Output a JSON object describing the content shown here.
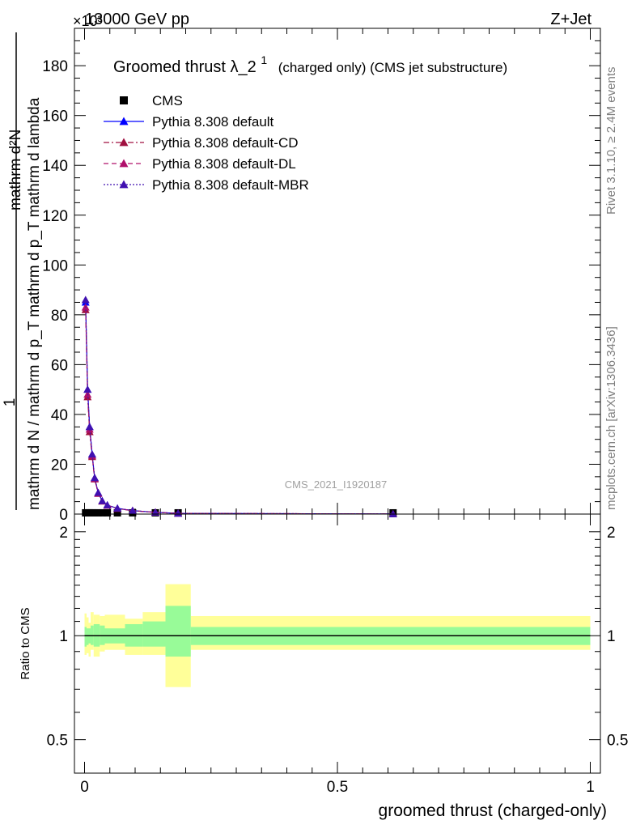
{
  "header": {
    "left": "13000 GeV pp",
    "right": "Z+Jet",
    "exponent": "×10³"
  },
  "side_labels": {
    "rivet": "Rivet 3.1.10, ≥ 2.4M events",
    "mcplots": "mcplots.cern.ch [arXiv:1306.3436]"
  },
  "watermark": "CMS_2021_I1920187",
  "chart_data": [
    {
      "type": "line",
      "title": "Groomed thrust λ_2¹",
      "title_parts": {
        "main": "Groomed thrust",
        "lambda": "λ_2",
        "sup": "1",
        "suffix": "(charged only) (CMS jet substructure)"
      },
      "ylabel": "1 / mathrm d N / mathrm d p_T mathrm d p_T mathrm d lambda / mathrm d²N",
      "ylabel_parts": {
        "numerator": "mathrm d²N",
        "denominator": "mathrm d N / mathrm d p_T mathrm d p_T mathrm d lambda",
        "one": "1"
      },
      "xlim": [
        -0.02,
        1.02
      ],
      "ylim": [
        0,
        195
      ],
      "y_multiplier": 1000,
      "y_ticks": [
        0,
        20,
        40,
        60,
        80,
        100,
        120,
        140,
        160,
        180
      ],
      "x_ticks": [
        0,
        0.5,
        1
      ],
      "legend_position": "top-left",
      "series": [
        {
          "name": "CMS",
          "color": "#000000",
          "marker": "square",
          "line": "none",
          "x": [
            0.002,
            0.006,
            0.01,
            0.015,
            0.02,
            0.027,
            0.035,
            0.045,
            0.065,
            0.095,
            0.14,
            0.185,
            0.61
          ],
          "values": [
            0.5,
            0.5,
            0.5,
            0.5,
            0.5,
            0.5,
            0.5,
            0.5,
            0.5,
            0.5,
            0.5,
            0.5,
            0.5
          ]
        },
        {
          "name": "Pythia 8.308 default",
          "color": "#0000ff",
          "marker": "triangle",
          "line": "solid",
          "x": [
            0.002,
            0.006,
            0.01,
            0.015,
            0.02,
            0.027,
            0.035,
            0.045,
            0.065,
            0.095,
            0.14,
            0.185,
            0.61
          ],
          "values": [
            85,
            50,
            35,
            24,
            14.5,
            8.5,
            5.3,
            3.6,
            2.3,
            1.4,
            0.7,
            0.3,
            0.02
          ]
        },
        {
          "name": "Pythia 8.308 default-CD",
          "color": "#a01040",
          "marker": "triangle",
          "line": "dashdot",
          "x": [
            0.002,
            0.006,
            0.01,
            0.015,
            0.02,
            0.027,
            0.035,
            0.045,
            0.065,
            0.095,
            0.14,
            0.185,
            0.61
          ],
          "values": [
            82,
            47,
            33,
            23,
            14,
            8.2,
            5.1,
            3.5,
            2.2,
            1.35,
            0.68,
            0.3,
            0.02
          ]
        },
        {
          "name": "Pythia 8.308 default-DL",
          "color": "#b0106a",
          "marker": "triangle",
          "line": "dashed",
          "x": [
            0.002,
            0.006,
            0.01,
            0.015,
            0.02,
            0.027,
            0.035,
            0.045,
            0.065,
            0.095,
            0.14,
            0.185,
            0.61
          ],
          "values": [
            83,
            48,
            34,
            23.5,
            14.2,
            8.3,
            5.2,
            3.5,
            2.25,
            1.38,
            0.69,
            0.3,
            0.02
          ]
        },
        {
          "name": "Pythia 8.308 default-MBR",
          "color": "#4010b0",
          "marker": "triangle",
          "line": "dotted",
          "x": [
            0.002,
            0.006,
            0.01,
            0.015,
            0.02,
            0.027,
            0.035,
            0.045,
            0.065,
            0.095,
            0.14,
            0.185,
            0.61
          ],
          "values": [
            86,
            50,
            35,
            24,
            14.6,
            8.6,
            5.3,
            3.6,
            2.3,
            1.4,
            0.7,
            0.3,
            0.02
          ]
        }
      ]
    },
    {
      "type": "area",
      "ylabel": "Ratio to CMS",
      "xlabel": "groomed thrust (charged-only)",
      "xlim": [
        -0.02,
        1.02
      ],
      "ylim": [
        0.4,
        2.25
      ],
      "y_scale": "log",
      "y_ticks": [
        0.5,
        1,
        2
      ],
      "x_ticks": [
        0,
        0.5,
        1
      ],
      "x_tick_labels": [
        "0",
        "0.5",
        "1"
      ],
      "bands": {
        "bin_edges": [
          0,
          0.004,
          0.008,
          0.012,
          0.018,
          0.03,
          0.04,
          0.08,
          0.115,
          0.16,
          0.21,
          1.0
        ],
        "inner_low": [
          0.93,
          0.94,
          0.95,
          0.94,
          0.93,
          0.94,
          0.95,
          0.93,
          0.93,
          0.87,
          0.94
        ],
        "inner_high": [
          1.06,
          1.05,
          1.05,
          1.07,
          1.08,
          1.07,
          1.05,
          1.08,
          1.1,
          1.22,
          1.06
        ],
        "outer_low": [
          0.88,
          0.89,
          0.87,
          0.91,
          0.87,
          0.9,
          0.91,
          0.88,
          0.88,
          0.71,
          0.91
        ],
        "outer_high": [
          1.16,
          1.13,
          1.09,
          1.17,
          1.15,
          1.14,
          1.15,
          1.12,
          1.17,
          1.41,
          1.14
        ],
        "inner_color": "#98fb98",
        "outer_color": "#ffff99"
      },
      "reference_line": 1
    }
  ]
}
